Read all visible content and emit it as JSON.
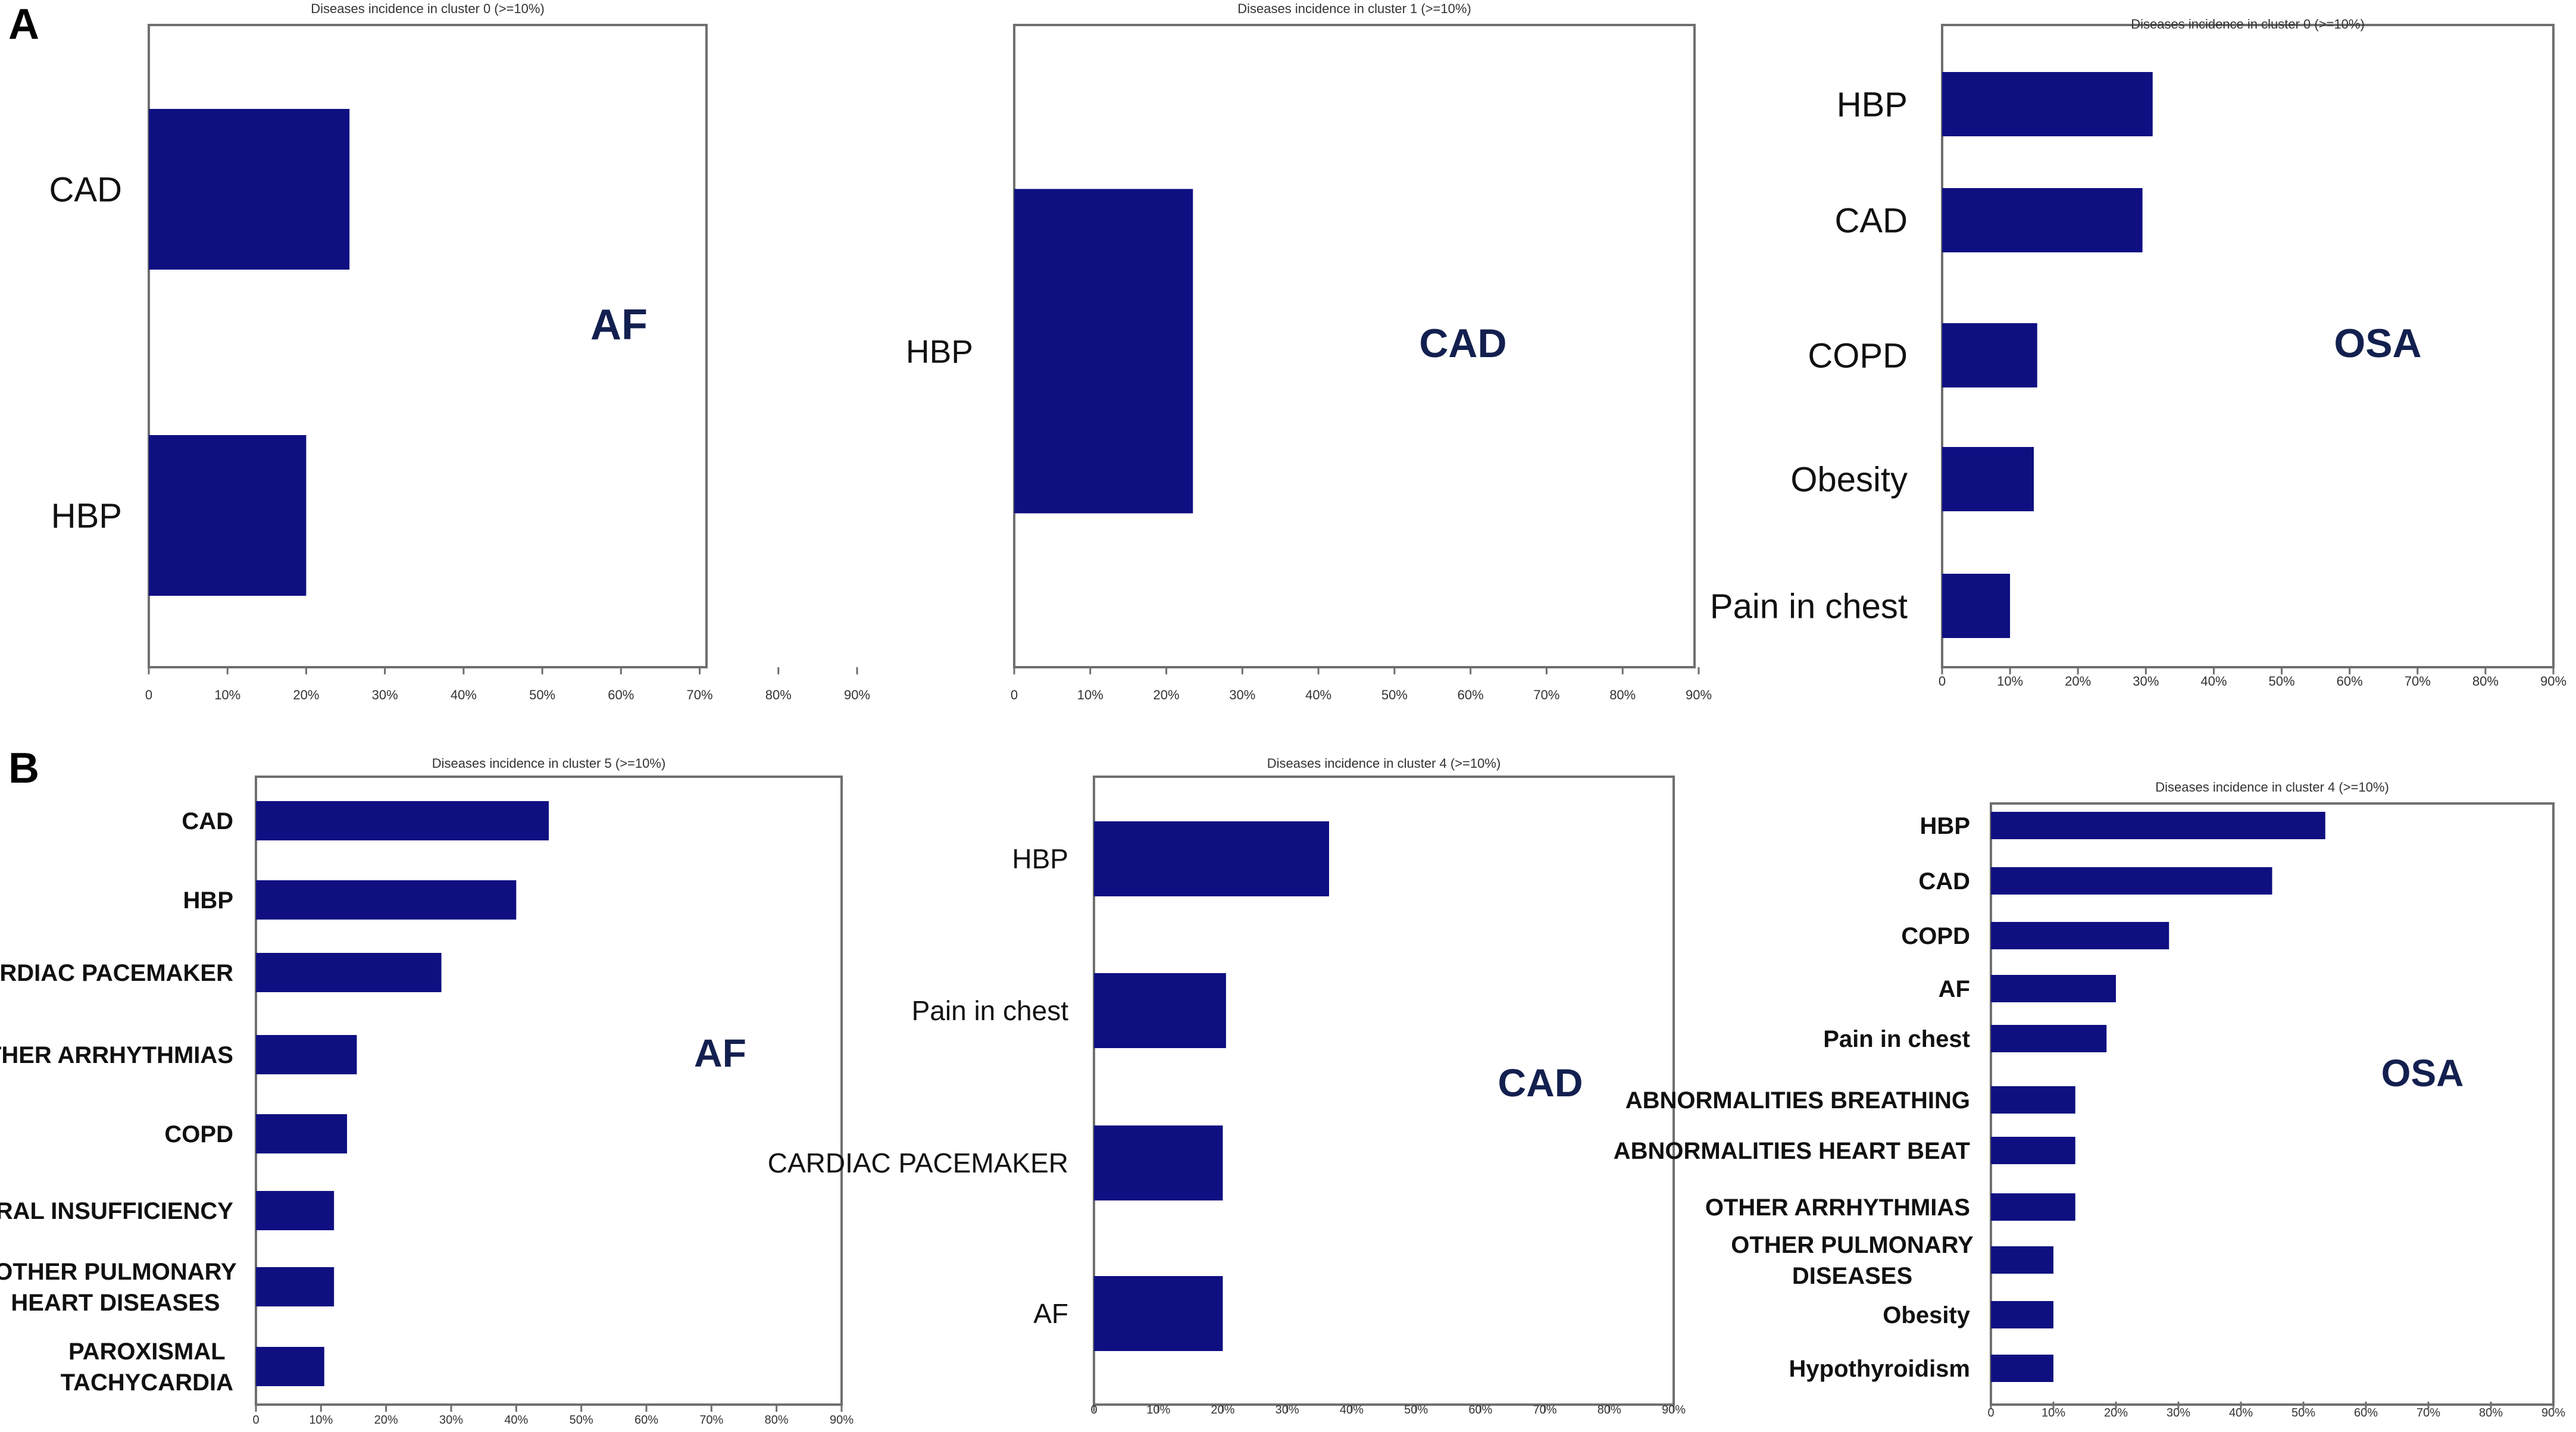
{
  "panels": [
    {
      "letter": "A"
    },
    {
      "letter": "B"
    }
  ],
  "colors": {
    "bar": "#0f0f82",
    "frame": "#6f6f6f",
    "label": "#111111",
    "big_label": "#13204f"
  },
  "chart_data": [
    {
      "type": "bar",
      "orientation": "horizontal",
      "title": "Diseases incidence in cluster 0 (>=10%)",
      "categories": [
        "CAD",
        "HBP"
      ],
      "values": [
        25.5,
        20
      ],
      "annotation": "AF",
      "xlim": [
        0,
        90
      ],
      "xticks": [
        "0",
        "10%",
        "20%",
        "30%",
        "40%",
        "50%",
        "60%",
        "70%",
        "80%",
        "90%"
      ]
    },
    {
      "type": "bar",
      "orientation": "horizontal",
      "title": "Diseases incidence in cluster 1 (>=10%)",
      "categories": [
        "HBP"
      ],
      "values": [
        23.5
      ],
      "annotation": "CAD",
      "xlim": [
        0,
        90
      ],
      "xticks": [
        "0",
        "10%",
        "20%",
        "30%",
        "40%",
        "50%",
        "60%",
        "70%",
        "80%",
        "90%"
      ]
    },
    {
      "type": "bar",
      "orientation": "horizontal",
      "title": "Diseases incidence in cluster 0 (>=10%)",
      "categories": [
        "HBP",
        "CAD",
        "COPD",
        "Obesity",
        "Pain in chest"
      ],
      "values": [
        31,
        29.5,
        14,
        13.5,
        10
      ],
      "annotation": "OSA",
      "xlim": [
        0,
        90
      ],
      "xticks": [
        "0",
        "10%",
        "20%",
        "30%",
        "40%",
        "50%",
        "60%",
        "70%",
        "80%",
        "90%"
      ]
    },
    {
      "type": "bar",
      "orientation": "horizontal",
      "title": "Diseases incidence in cluster 5 (>=10%)",
      "categories": [
        "CAD",
        "HBP",
        "CARDIAC PACEMAKER",
        "OTHER ARRHYTHMIAS",
        "COPD",
        "MITRAL INSUFFICIENCY",
        "OTHER PULMONARY HEART DISEASES",
        "PAROXISMAL TACHYCARDIA"
      ],
      "values": [
        45,
        40,
        28.5,
        15.5,
        14,
        12,
        12,
        10.5
      ],
      "annotation": "AF",
      "xlim": [
        0,
        90
      ],
      "xticks": [
        "0",
        "10%",
        "20%",
        "30%",
        "40%",
        "50%",
        "60%",
        "70%",
        "80%",
        "90%"
      ]
    },
    {
      "type": "bar",
      "orientation": "horizontal",
      "title": "Diseases incidence in cluster 4 (>=10%)",
      "categories": [
        "HBP",
        "Pain in chest",
        "CARDIAC PACEMAKER",
        "AF"
      ],
      "values": [
        36.5,
        20.5,
        20,
        20
      ],
      "annotation": "CAD",
      "xlim": [
        0,
        90
      ],
      "xticks": [
        "0",
        "10%",
        "20%",
        "30%",
        "40%",
        "50%",
        "60%",
        "70%",
        "80%",
        "90%"
      ]
    },
    {
      "type": "bar",
      "orientation": "horizontal",
      "title": "Diseases incidence in cluster 4 (>=10%)",
      "categories": [
        "HBP",
        "CAD",
        "COPD",
        "AF",
        "Pain in chest",
        "ABNORMALITIES BREATHING",
        "ABNORMALITIES HEART BEAT",
        "OTHER ARRHYTHMIAS",
        "OTHER PULMONARY DISEASES",
        "Obesity",
        "Hypothyroidism"
      ],
      "values": [
        53.5,
        45,
        28.5,
        20,
        18.5,
        13.5,
        13.5,
        13.5,
        10,
        10,
        10
      ],
      "annotation": "OSA",
      "xlim": [
        0,
        90
      ],
      "xticks": [
        "0",
        "10%",
        "20%",
        "30%",
        "40%",
        "50%",
        "60%",
        "70%",
        "80%",
        "90%"
      ]
    }
  ]
}
